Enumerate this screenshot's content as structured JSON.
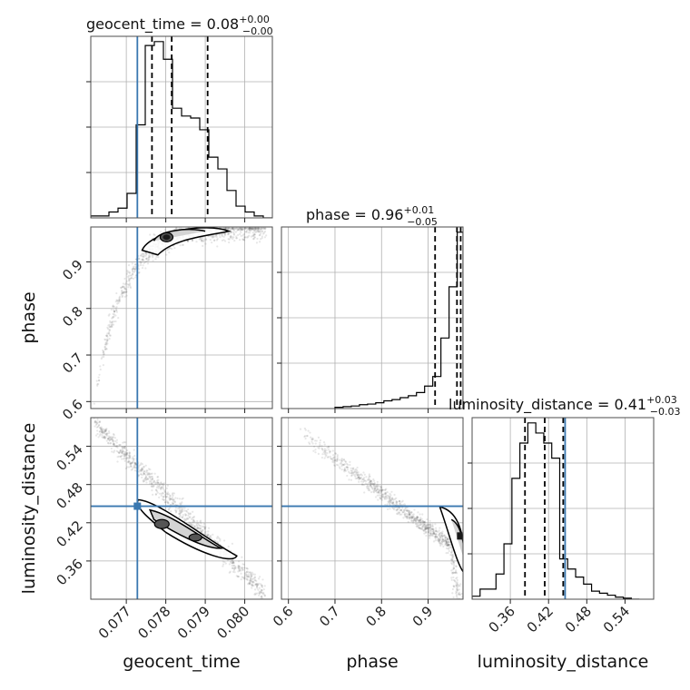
{
  "chart_data": {
    "type": "corner",
    "parameters": [
      "geocent_time",
      "phase",
      "luminosity_distance"
    ],
    "titles": {
      "geocent_time": {
        "name": "geocent_time",
        "median": "0.08",
        "plus": "+0.00",
        "minus": "−0.00"
      },
      "phase": {
        "name": "phase",
        "median": "0.96",
        "plus": "+0.01",
        "minus": "−0.05"
      },
      "luminosity_distance": {
        "name": "luminosity_distance",
        "median": "0.41",
        "plus": "+0.03",
        "minus": "−0.03"
      }
    },
    "ranges": {
      "geocent_time": [
        0.0761,
        0.0807
      ],
      "phase": [
        0.585,
        0.975
      ],
      "luminosity_distance": [
        0.3,
        0.585
      ]
    },
    "ticks": {
      "geocent_time": [
        0.077,
        0.078,
        0.079,
        0.08
      ],
      "phase": [
        0.6,
        0.7,
        0.8,
        0.9
      ],
      "luminosity_distance": [
        0.36,
        0.42,
        0.48,
        0.54
      ]
    },
    "tick_labels": {
      "geocent_time": [
        "0.077",
        "0.078",
        "0.079",
        "0.080"
      ],
      "phase": [
        "0.6",
        "0.7",
        "0.8",
        "0.9"
      ],
      "luminosity_distance": [
        "0.36",
        "0.42",
        "0.48",
        "0.54"
      ]
    },
    "truths": {
      "geocent_time": 0.07728,
      "luminosity_distance": 0.446
    },
    "quantiles": {
      "geocent_time": [
        0.07765,
        0.07815,
        0.07906
      ],
      "phase": [
        0.915,
        0.962,
        0.97
      ],
      "luminosity_distance": [
        0.383,
        0.414,
        0.443
      ]
    },
    "histograms": {
      "geocent_time": {
        "edges": [
          0.0761,
          0.07633,
          0.07656,
          0.07679,
          0.07702,
          0.07725,
          0.07748,
          0.07771,
          0.07794,
          0.07817,
          0.0784,
          0.07863,
          0.07886,
          0.07909,
          0.07932,
          0.07955,
          0.07978,
          0.08001,
          0.08024,
          0.08047,
          0.0807
        ],
        "counts": [
          2,
          2,
          6,
          10,
          25,
          95,
          176,
          180,
          162,
          112,
          104,
          102,
          90,
          62,
          50,
          28,
          12,
          6,
          2,
          0
        ]
      },
      "phase": {
        "edges": [
          0.7,
          0.7175,
          0.735,
          0.7525,
          0.77,
          0.7875,
          0.805,
          0.8225,
          0.84,
          0.8575,
          0.875,
          0.8925,
          0.91,
          0.9275,
          0.945,
          0.9625,
          0.975
        ],
        "counts": [
          2,
          3,
          4,
          6,
          7,
          9,
          12,
          14,
          17,
          20,
          25,
          35,
          50,
          110,
          190,
          275
        ]
      },
      "luminosity_distance": {
        "edges": [
          0.3,
          0.3125,
          0.325,
          0.3375,
          0.35,
          0.3625,
          0.375,
          0.3875,
          0.4,
          0.4125,
          0.425,
          0.4375,
          0.45,
          0.4625,
          0.475,
          0.4875,
          0.5,
          0.5125,
          0.525,
          0.5375,
          0.55,
          0.5625
        ],
        "counts": [
          3,
          10,
          10,
          25,
          55,
          120,
          155,
          175,
          165,
          155,
          140,
          40,
          30,
          22,
          15,
          8,
          6,
          4,
          2,
          1,
          0
        ]
      }
    },
    "axis_labels": {
      "geocent_time": "geocent_time",
      "phase": "phase",
      "luminosity_distance": "luminosity_distance"
    },
    "grid": true,
    "colors": {
      "truth": "#3a78b0",
      "hist": "#000000",
      "quantile": "#000000",
      "samples": "#555555"
    }
  }
}
